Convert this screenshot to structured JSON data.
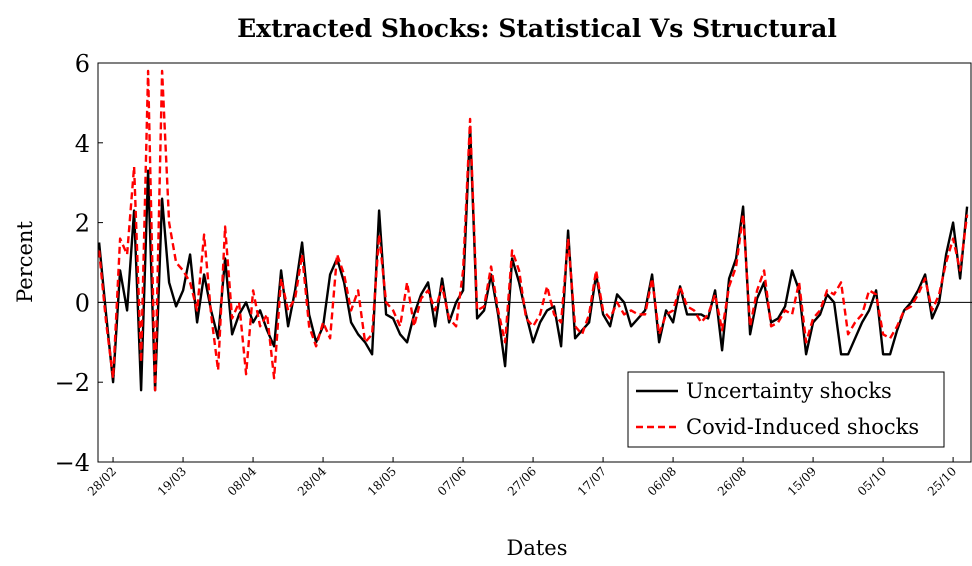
{
  "chart_data": {
    "type": "line",
    "title": "Extracted Shocks: Statistical Vs Structural",
    "xlabel": "Dates",
    "ylabel": "Percent",
    "x": [
      -4,
      -2,
      0,
      2,
      4,
      6,
      8,
      10,
      12,
      14,
      16,
      18,
      20,
      22,
      24,
      26,
      28,
      30,
      32,
      34,
      36,
      38,
      40,
      42,
      44,
      46,
      48,
      50,
      52,
      54,
      56,
      58,
      60,
      62,
      64,
      66,
      68,
      70,
      72,
      74,
      76,
      78,
      80,
      82,
      84,
      86,
      88,
      90,
      92,
      94,
      96,
      98,
      100,
      102,
      104,
      106,
      108,
      110,
      112,
      114,
      116,
      118,
      120,
      122,
      124,
      126,
      128,
      130,
      132,
      134,
      136,
      138,
      140,
      142,
      144,
      146,
      148,
      150,
      152,
      154,
      156,
      158,
      160,
      162,
      164,
      166,
      168,
      170,
      172,
      174,
      176,
      178,
      180,
      182,
      184,
      186,
      188,
      190,
      192,
      194,
      196,
      198,
      200,
      202,
      204,
      206,
      208,
      210,
      212,
      214,
      216,
      218,
      220,
      222,
      224,
      226,
      228,
      230,
      232,
      234,
      236,
      238,
      240,
      242,
      244
    ],
    "series": [
      {
        "name": "Uncertainty shocks",
        "color": "#000000",
        "dash": false,
        "values": [
          1.5,
          -0.3,
          -2.0,
          0.8,
          -0.2,
          2.3,
          -2.2,
          3.3,
          -2.2,
          2.6,
          0.5,
          -0.1,
          0.3,
          1.2,
          -0.5,
          0.7,
          -0.2,
          -0.9,
          1.1,
          -0.8,
          -0.3,
          0.0,
          -0.5,
          -0.2,
          -0.7,
          -1.1,
          0.8,
          -0.6,
          0.3,
          1.5,
          -0.3,
          -1.0,
          -0.6,
          0.7,
          1.1,
          0.5,
          -0.5,
          -0.8,
          -1.0,
          -1.3,
          2.3,
          -0.3,
          -0.4,
          -0.8,
          -1.0,
          -0.3,
          0.2,
          0.5,
          -0.6,
          0.6,
          -0.5,
          0.0,
          0.3,
          4.4,
          -0.4,
          -0.2,
          0.7,
          -0.3,
          -1.6,
          1.1,
          0.5,
          -0.3,
          -1.0,
          -0.5,
          -0.2,
          -0.1,
          -1.1,
          1.8,
          -0.9,
          -0.7,
          -0.5,
          0.7,
          -0.3,
          -0.6,
          0.2,
          0.0,
          -0.6,
          -0.4,
          -0.2,
          0.7,
          -1.0,
          -0.2,
          -0.5,
          0.4,
          -0.3,
          -0.3,
          -0.3,
          -0.4,
          0.3,
          -1.2,
          0.6,
          1.1,
          2.4,
          -0.8,
          0.1,
          0.5,
          -0.5,
          -0.4,
          -0.1,
          0.8,
          0.3,
          -1.3,
          -0.5,
          -0.3,
          0.2,
          0.0,
          -1.3,
          -1.3,
          -0.9,
          -0.5,
          -0.2,
          0.3,
          -1.3,
          -1.3,
          -0.7,
          -0.2,
          0.0,
          0.3,
          0.7,
          -0.4,
          0.0,
          1.2,
          2.0,
          0.6,
          2.4
        ]
      },
      {
        "name": "Covid-Induced shocks",
        "color": "#ff0000",
        "dash": true,
        "values": [
          1.3,
          -0.5,
          -1.9,
          1.6,
          1.2,
          3.4,
          -1.5,
          5.8,
          -2.2,
          5.8,
          2.0,
          1.0,
          0.8,
          0.5,
          -0.2,
          1.7,
          -0.3,
          -1.7,
          1.9,
          -0.4,
          0.0,
          -1.8,
          0.3,
          -0.6,
          -0.3,
          -1.9,
          0.6,
          -0.2,
          0.1,
          1.2,
          -0.6,
          -1.1,
          -0.5,
          -0.9,
          1.2,
          0.7,
          -0.2,
          0.3,
          -1.0,
          -0.8,
          1.7,
          0.0,
          -0.2,
          -0.6,
          0.5,
          -0.6,
          0.1,
          0.3,
          -0.2,
          0.4,
          -0.4,
          -0.6,
          0.8,
          4.6,
          -0.2,
          -0.1,
          0.9,
          -0.2,
          -1.0,
          1.3,
          0.8,
          -0.4,
          -0.6,
          -0.3,
          0.4,
          -0.3,
          -0.5,
          1.6,
          -0.6,
          -0.8,
          -0.3,
          0.8,
          -0.2,
          -0.4,
          0.0,
          -0.3,
          -0.2,
          -0.3,
          -0.3,
          0.6,
          -0.8,
          -0.3,
          -0.2,
          0.4,
          -0.1,
          -0.2,
          -0.5,
          -0.3,
          0.2,
          -0.7,
          0.4,
          0.9,
          2.2,
          -0.6,
          0.3,
          0.8,
          -0.6,
          -0.5,
          -0.2,
          -0.3,
          0.5,
          -1.0,
          -0.4,
          -0.2,
          0.3,
          0.2,
          0.5,
          -0.8,
          -0.5,
          -0.3,
          0.3,
          0.2,
          -0.8,
          -0.9,
          -0.6,
          -0.2,
          -0.1,
          0.2,
          0.6,
          -0.2,
          0.2,
          1.0,
          1.6,
          0.8,
          2.2
        ]
      }
    ],
    "xlim": [
      -4.3,
      245.4
    ],
    "xticks": [
      {
        "value": 0,
        "label": "28/02"
      },
      {
        "value": 20,
        "label": "19/03"
      },
      {
        "value": 40,
        "label": "08/04"
      },
      {
        "value": 60,
        "label": "28/04"
      },
      {
        "value": 80,
        "label": "18/05"
      },
      {
        "value": 100,
        "label": "07/06"
      },
      {
        "value": 120,
        "label": "27/06"
      },
      {
        "value": 140,
        "label": "17/07"
      },
      {
        "value": 160,
        "label": "06/08"
      },
      {
        "value": 180,
        "label": "26/08"
      },
      {
        "value": 200,
        "label": "15/09"
      },
      {
        "value": 220,
        "label": "05/10"
      },
      {
        "value": 240,
        "label": "25/10"
      }
    ],
    "ylim": [
      -4,
      6
    ],
    "yticks": [
      {
        "value": -4,
        "label": "−4"
      },
      {
        "value": -2,
        "label": "−2"
      },
      0,
      2,
      4,
      6
    ],
    "zero_line": true,
    "legend": "lower right"
  }
}
